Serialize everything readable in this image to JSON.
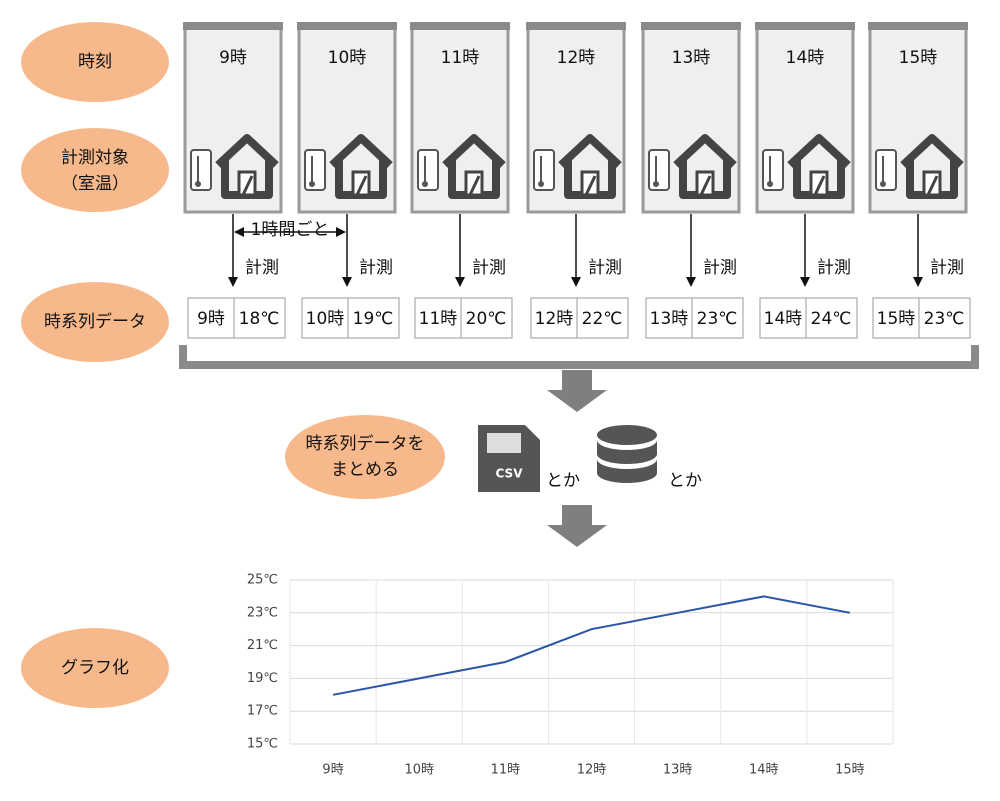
{
  "labels": {
    "time": "時刻",
    "target": "計測対象",
    "target_sub": "（室温）",
    "series": "時系列データ",
    "collect_1": "時系列データを",
    "collect_2": "まとめる",
    "graph": "グラフ化"
  },
  "hours": [
    "9時",
    "10時",
    "11時",
    "12時",
    "13時",
    "14時",
    "15時"
  ],
  "interval_label": "1時間ごと",
  "measure_label": "計測",
  "records": [
    {
      "hour": "9時",
      "temp": "18℃"
    },
    {
      "hour": "10時",
      "temp": "19℃"
    },
    {
      "hour": "11時",
      "temp": "20℃"
    },
    {
      "hour": "12時",
      "temp": "22℃"
    },
    {
      "hour": "13時",
      "temp": "23℃"
    },
    {
      "hour": "14時",
      "temp": "24℃"
    },
    {
      "hour": "15時",
      "temp": "23℃"
    }
  ],
  "file_label": "CSV",
  "or_label": "とか",
  "chart_data": {
    "type": "line",
    "categories": [
      "9時",
      "10時",
      "11時",
      "12時",
      "13時",
      "14時",
      "15時"
    ],
    "values": [
      18,
      19,
      20,
      22,
      23,
      24,
      23
    ],
    "color": "#2a55a8",
    "ylim": [
      15,
      25
    ],
    "yticks": [
      {
        "value": 15,
        "label": "15℃"
      },
      {
        "value": 17,
        "label": "17℃"
      },
      {
        "value": 19,
        "label": "19℃"
      },
      {
        "value": 21,
        "label": "21℃"
      },
      {
        "value": 23,
        "label": "23℃"
      },
      {
        "value": 25,
        "label": "25℃"
      }
    ],
    "grid": true
  }
}
